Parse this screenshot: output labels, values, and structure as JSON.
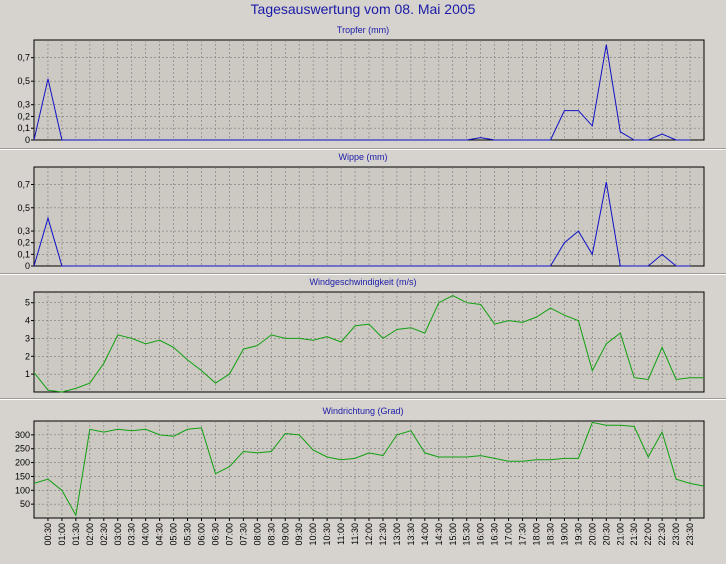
{
  "title": "Tagesauswertung vom 08. Mai 2005",
  "chart_data": [
    {
      "type": "line",
      "title": "Tropfer (mm)",
      "color": "#1010c8",
      "ylim": [
        0,
        0.85
      ],
      "yticks": [
        0,
        0.1,
        0.2,
        0.3,
        0.5,
        0.7
      ],
      "ytick_labels": [
        "0",
        "0,1",
        "0,2",
        "0,3",
        "0,5",
        "0,7"
      ],
      "x": [
        "00:00",
        "00:30",
        "01:00",
        "01:30",
        "02:00",
        "02:30",
        "03:00",
        "03:30",
        "04:00",
        "04:30",
        "05:00",
        "05:30",
        "06:00",
        "06:30",
        "07:00",
        "07:30",
        "08:00",
        "08:30",
        "09:00",
        "09:30",
        "10:00",
        "10:30",
        "11:00",
        "11:30",
        "12:00",
        "12:30",
        "13:00",
        "13:30",
        "14:00",
        "14:30",
        "15:00",
        "15:30",
        "16:00",
        "16:30",
        "17:00",
        "17:30",
        "18:00",
        "18:30",
        "19:00",
        "19:30",
        "20:00",
        "20:30",
        "21:00",
        "21:30",
        "22:00",
        "22:30",
        "23:00",
        "23:30"
      ],
      "values": [
        0,
        0.52,
        0,
        0,
        0,
        0,
        0,
        0,
        0,
        0,
        0,
        0,
        0,
        0,
        0,
        0,
        0,
        0,
        0,
        0,
        0,
        0,
        0,
        0,
        0,
        0,
        0,
        0,
        0,
        0,
        0,
        0,
        0.02,
        0,
        0,
        0,
        0,
        0,
        0.25,
        0.25,
        0.12,
        0.81,
        0.07,
        0,
        0,
        0.05,
        0,
        0
      ]
    },
    {
      "type": "line",
      "title": "Wippe (mm)",
      "color": "#1010c8",
      "ylim": [
        0,
        0.85
      ],
      "yticks": [
        0,
        0.1,
        0.2,
        0.3,
        0.5,
        0.7
      ],
      "ytick_labels": [
        "0",
        "0,1",
        "0,2",
        "0,3",
        "0,5",
        "0,7"
      ],
      "x": [
        "00:00",
        "00:30",
        "01:00",
        "01:30",
        "02:00",
        "02:30",
        "03:00",
        "03:30",
        "04:00",
        "04:30",
        "05:00",
        "05:30",
        "06:00",
        "06:30",
        "07:00",
        "07:30",
        "08:00",
        "08:30",
        "09:00",
        "09:30",
        "10:00",
        "10:30",
        "11:00",
        "11:30",
        "12:00",
        "12:30",
        "13:00",
        "13:30",
        "14:00",
        "14:30",
        "15:00",
        "15:30",
        "16:00",
        "16:30",
        "17:00",
        "17:30",
        "18:00",
        "18:30",
        "19:00",
        "19:30",
        "20:00",
        "20:30",
        "21:00",
        "21:30",
        "22:00",
        "22:30",
        "23:00",
        "23:30"
      ],
      "values": [
        0,
        0.41,
        0,
        0,
        0,
        0,
        0,
        0,
        0,
        0,
        0,
        0,
        0,
        0,
        0,
        0,
        0,
        0,
        0,
        0,
        0,
        0,
        0,
        0,
        0,
        0,
        0,
        0,
        0,
        0,
        0,
        0,
        0,
        0,
        0,
        0,
        0,
        0,
        0.2,
        0.3,
        0.1,
        0.72,
        0,
        0,
        0,
        0.1,
        0,
        0
      ]
    },
    {
      "type": "line",
      "title": "Windgeschwindigkeit (m/s)",
      "color": "#10a010",
      "ylim": [
        0,
        5.6
      ],
      "yticks": [
        1,
        2,
        3,
        4,
        5
      ],
      "ytick_labels": [
        "1",
        "2",
        "3",
        "4",
        "5"
      ],
      "x": [
        "00:00",
        "00:30",
        "01:00",
        "01:30",
        "02:00",
        "02:30",
        "03:00",
        "03:30",
        "04:00",
        "04:30",
        "05:00",
        "05:30",
        "06:00",
        "06:30",
        "07:00",
        "07:30",
        "08:00",
        "08:30",
        "09:00",
        "09:30",
        "10:00",
        "10:30",
        "11:00",
        "11:30",
        "12:00",
        "12:30",
        "13:00",
        "13:30",
        "14:00",
        "14:30",
        "15:00",
        "15:30",
        "16:00",
        "16:30",
        "17:00",
        "17:30",
        "18:00",
        "18:30",
        "19:00",
        "19:30",
        "20:00",
        "20:30",
        "21:00",
        "21:30",
        "22:00",
        "22:30",
        "23:00",
        "23:30",
        "24:00"
      ],
      "values": [
        1.1,
        0.1,
        0.0,
        0.2,
        0.5,
        1.6,
        3.2,
        3.0,
        2.7,
        2.9,
        2.5,
        1.8,
        1.2,
        0.5,
        1.0,
        2.4,
        2.6,
        3.2,
        3.0,
        3.0,
        2.9,
        3.1,
        2.8,
        3.7,
        3.8,
        3.0,
        3.5,
        3.6,
        3.3,
        5.0,
        5.4,
        5.0,
        4.9,
        3.8,
        4.0,
        3.9,
        4.2,
        4.7,
        4.3,
        4.0,
        1.2,
        2.7,
        3.3,
        0.8,
        0.7,
        2.5,
        0.7,
        0.8,
        0.8
      ]
    },
    {
      "type": "line",
      "title": "Windrichtung (Grad)",
      "color": "#10a010",
      "ylim": [
        0,
        350
      ],
      "yticks": [
        50,
        100,
        150,
        200,
        250,
        300
      ],
      "ytick_labels": [
        "50",
        "100",
        "150",
        "200",
        "250",
        "300"
      ],
      "x": [
        "00:00",
        "00:30",
        "01:00",
        "01:30",
        "02:00",
        "02:30",
        "03:00",
        "03:30",
        "04:00",
        "04:30",
        "05:00",
        "05:30",
        "06:00",
        "06:30",
        "07:00",
        "07:30",
        "08:00",
        "08:30",
        "09:00",
        "09:30",
        "10:00",
        "10:30",
        "11:00",
        "11:30",
        "12:00",
        "12:30",
        "13:00",
        "13:30",
        "14:00",
        "14:30",
        "15:00",
        "15:30",
        "16:00",
        "16:30",
        "17:00",
        "17:30",
        "18:00",
        "18:30",
        "19:00",
        "19:30",
        "20:00",
        "20:30",
        "21:00",
        "21:30",
        "22:00",
        "22:30",
        "23:00",
        "23:30",
        "24:00"
      ],
      "values": [
        125,
        140,
        100,
        10,
        320,
        310,
        320,
        315,
        320,
        300,
        295,
        320,
        325,
        160,
        185,
        240,
        235,
        240,
        305,
        300,
        245,
        220,
        210,
        215,
        235,
        225,
        300,
        315,
        235,
        220,
        220,
        220,
        225,
        215,
        205,
        205,
        210,
        210,
        215,
        215,
        345,
        335,
        335,
        330,
        220,
        310,
        140,
        125,
        115
      ]
    }
  ],
  "x_axis": {
    "tick_labels": [
      "00:30",
      "01:00",
      "01:30",
      "02:00",
      "02:30",
      "03:00",
      "03:30",
      "04:00",
      "04:30",
      "05:00",
      "05:30",
      "06:00",
      "06:30",
      "07:00",
      "07:30",
      "08:00",
      "08:30",
      "09:00",
      "09:30",
      "10:00",
      "10:30",
      "11:00",
      "11:30",
      "12:00",
      "12:30",
      "13:00",
      "13:30",
      "14:00",
      "14:30",
      "15:00",
      "15:30",
      "16:00",
      "16:30",
      "17:00",
      "17:30",
      "18:00",
      "18:30",
      "19:00",
      "19:30",
      "20:00",
      "20:30",
      "21:00",
      "21:30",
      "22:00",
      "22:30",
      "23:00",
      "23:30"
    ]
  }
}
